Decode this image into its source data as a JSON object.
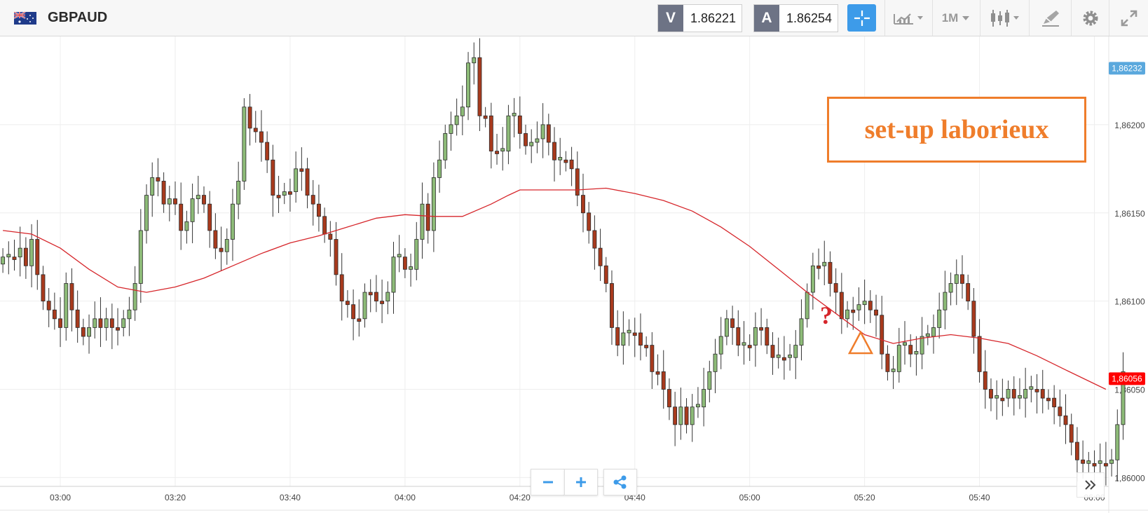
{
  "header": {
    "symbol": "GBPAUD",
    "sell_tag": "V",
    "sell_price": "1.86221",
    "buy_tag": "A",
    "buy_price": "1.86254",
    "timeframe": "1M"
  },
  "annotation": {
    "text": "set-up laborieux",
    "question_mark": "?",
    "color": "#ef7d2b",
    "question_color": "#d6262b"
  },
  "colors": {
    "bull": "#8dbb78",
    "bear": "#a83a1d",
    "ma": "#d6262b",
    "accent": "#3d9be9",
    "price_tag_last": "#ff0000",
    "price_tag_top": "#5aa8dd"
  },
  "chart_data": {
    "type": "candlestick",
    "y_ticks": [
      "1,86000",
      "1,86050",
      "1,86100",
      "1,86150",
      "1,86200"
    ],
    "y_tick_values": [
      1.86,
      1.8605,
      1.861,
      1.8615,
      1.862
    ],
    "ylim": [
      1.85995,
      1.8625
    ],
    "x_ticks": [
      "03:00",
      "03:20",
      "03:40",
      "04:00",
      "04:20",
      "04:40",
      "05:00",
      "05:20",
      "05:40",
      "06:00"
    ],
    "x_tick_minutes": [
      10,
      30,
      50,
      70,
      90,
      110,
      130,
      150,
      170,
      190
    ],
    "xlim_minutes": [
      -0.5,
      192.5
    ],
    "price_tags": {
      "top": "1,86232",
      "last": "1,86056"
    },
    "time_start": "02:50",
    "candles_close": [
      1.86125,
      1.86125,
      1.86125,
      1.8613,
      1.8612,
      1.86135,
      1.86115,
      1.861,
      1.86095,
      1.8609,
      1.86085,
      1.8611,
      1.86095,
      1.86085,
      1.8608,
      1.86085,
      1.8609,
      1.86085,
      1.8609,
      1.86085,
      1.86085,
      1.8609,
      1.86095,
      1.8611,
      1.8614,
      1.8616,
      1.8617,
      1.86168,
      1.86155,
      1.86158,
      1.86155,
      1.8614,
      1.86145,
      1.86158,
      1.8616,
      1.86155,
      1.8614,
      1.8613,
      1.86128,
      1.86135,
      1.86155,
      1.86168,
      1.8621,
      1.86198,
      1.86196,
      1.8619,
      1.8618,
      1.8616,
      1.8616,
      1.86162,
      1.86162,
      1.86175,
      1.86175,
      1.8616,
      1.86155,
      1.86148,
      1.86138,
      1.86135,
      1.86115,
      1.861,
      1.86098,
      1.8609,
      1.8609,
      1.86105,
      1.86105,
      1.861,
      1.861,
      1.86105,
      1.86125,
      1.86125,
      1.86118,
      1.86118,
      1.86135,
      1.86155,
      1.8614,
      1.8617,
      1.8618,
      1.86195,
      1.862,
      1.86205,
      1.8621,
      1.86235,
      1.86238,
      1.86205,
      1.86205,
      1.86185,
      1.86185,
      1.86185,
      1.86205,
      1.86205,
      1.86195,
      1.86188,
      1.8619,
      1.86192,
      1.862,
      1.8619,
      1.8618,
      1.8618,
      1.8618,
      1.86175,
      1.8616,
      1.8615,
      1.8614,
      1.8613,
      1.8612,
      1.8611,
      1.86085,
      1.86075,
      1.86082,
      1.86082,
      1.86082,
      1.86075,
      1.86075,
      1.8606,
      1.8606,
      1.8605,
      1.8604,
      1.8603,
      1.8604,
      1.8603,
      1.8604,
      1.8604,
      1.8605,
      1.8606,
      1.8607,
      1.8608,
      1.8609,
      1.86085,
      1.86075,
      1.86075,
      1.86075,
      1.86085,
      1.86085,
      1.86075,
      1.86068,
      1.86068,
      1.86068,
      1.86068,
      1.86075,
      1.8609,
      1.86105,
      1.8612,
      1.8612,
      1.86122,
      1.8611,
      1.86105,
      1.8609,
      1.86095,
      1.86095,
      1.86098,
      1.861,
      1.86095,
      1.86092,
      1.8607,
      1.8606,
      1.8606,
      1.86075,
      1.86075,
      1.8607,
      1.8607,
      1.8608,
      1.8608,
      1.86085,
      1.86095,
      1.86105,
      1.8611,
      1.86115,
      1.8611,
      1.861,
      1.8608,
      1.8606,
      1.8605,
      1.86045,
      1.86045,
      1.86045,
      1.8605,
      1.86045,
      1.86045,
      1.8605,
      1.8605,
      1.8605,
      1.86045,
      1.86045,
      1.8604,
      1.86035,
      1.8603,
      1.8602,
      1.8601,
      1.86008,
      1.86008,
      1.86008,
      1.86008,
      1.86008,
      1.8601,
      1.8603,
      1.8606
    ],
    "moving_average": [
      [
        0,
        1.8614
      ],
      [
        5,
        1.86138
      ],
      [
        10,
        1.8613
      ],
      [
        15,
        1.86118
      ],
      [
        20,
        1.86108
      ],
      [
        25,
        1.86105
      ],
      [
        30,
        1.86108
      ],
      [
        35,
        1.86113
      ],
      [
        40,
        1.8612
      ],
      [
        45,
        1.86127
      ],
      [
        50,
        1.86133
      ],
      [
        55,
        1.86137
      ],
      [
        60,
        1.86142
      ],
      [
        65,
        1.86147
      ],
      [
        70,
        1.86149
      ],
      [
        75,
        1.86148
      ],
      [
        80,
        1.86148
      ],
      [
        85,
        1.86155
      ],
      [
        88,
        1.8616
      ],
      [
        90,
        1.86163
      ],
      [
        95,
        1.86163
      ],
      [
        100,
        1.86163
      ],
      [
        105,
        1.86164
      ],
      [
        110,
        1.86161
      ],
      [
        115,
        1.86157
      ],
      [
        120,
        1.86151
      ],
      [
        125,
        1.86142
      ],
      [
        130,
        1.86131
      ],
      [
        135,
        1.86118
      ],
      [
        140,
        1.86105
      ],
      [
        145,
        1.86093
      ],
      [
        150,
        1.86081
      ],
      [
        155,
        1.86076
      ],
      [
        160,
        1.86079
      ],
      [
        165,
        1.86081
      ],
      [
        170,
        1.86079
      ],
      [
        175,
        1.86076
      ],
      [
        180,
        1.86069
      ],
      [
        185,
        1.86061
      ],
      [
        192,
        1.8605
      ]
    ]
  }
}
